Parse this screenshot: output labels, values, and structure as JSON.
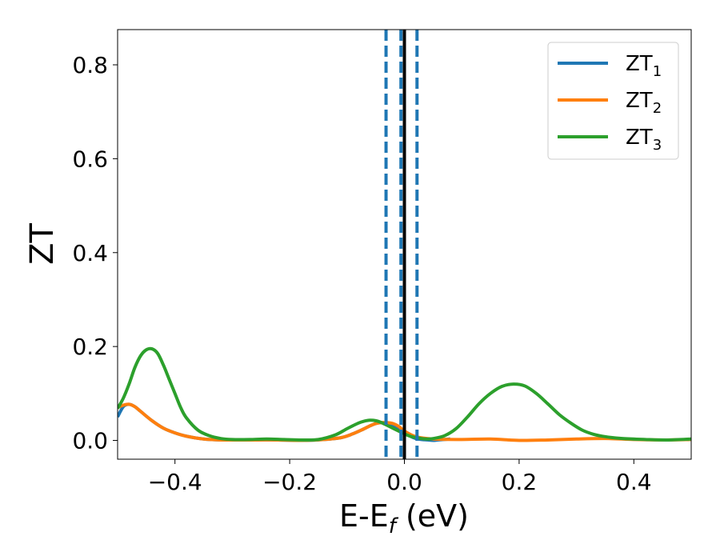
{
  "chart_data": {
    "type": "line",
    "title": "",
    "xlabel": "E-E",
    "xlabel_sub": "f",
    "xlabel_unit": " (eV)",
    "ylabel": "ZT",
    "xlim": [
      -0.5,
      0.5
    ],
    "ylim": [
      -0.04,
      0.875
    ],
    "xticks": [
      -0.4,
      -0.2,
      0.0,
      0.2,
      0.4
    ],
    "xtick_labels": [
      "−0.4",
      "−0.2",
      "0.0",
      "0.2",
      "0.4"
    ],
    "yticks": [
      0.0,
      0.2,
      0.4,
      0.6,
      0.8
    ],
    "ytick_labels": [
      "0.0",
      "0.2",
      "0.4",
      "0.6",
      "0.8"
    ],
    "grid": false,
    "legend_position": "top-right",
    "series": [
      {
        "name": "ZT",
        "name_sub": "1",
        "color": "#1f77b4",
        "x": [
          -0.5,
          -0.49,
          -0.48,
          -0.47,
          -0.46,
          -0.44,
          -0.42,
          -0.4,
          -0.38,
          -0.35,
          -0.32,
          -0.3,
          -0.26,
          -0.22,
          -0.18,
          -0.14,
          -0.11,
          -0.09,
          -0.075,
          -0.06,
          -0.05,
          -0.04,
          -0.03,
          -0.02,
          -0.01,
          0.0,
          0.01,
          0.02,
          0.03,
          0.04,
          0.05,
          0.06,
          0.08
        ],
        "y": [
          0.05,
          0.072,
          0.077,
          0.072,
          0.062,
          0.042,
          0.026,
          0.016,
          0.009,
          0.003,
          0.001,
          0.001,
          0.001,
          0.001,
          0.0,
          0.002,
          0.006,
          0.014,
          0.022,
          0.031,
          0.036,
          0.038,
          0.036,
          0.031,
          0.024,
          0.016,
          0.009,
          0.004,
          0.002,
          0.001,
          0.0,
          0.001,
          0.003
        ]
      },
      {
        "name": "ZT",
        "name_sub": "2",
        "color": "#ff7f0e",
        "x": [
          -0.5,
          -0.49,
          -0.48,
          -0.47,
          -0.46,
          -0.44,
          -0.42,
          -0.4,
          -0.38,
          -0.35,
          -0.32,
          -0.3,
          -0.26,
          -0.22,
          -0.18,
          -0.14,
          -0.11,
          -0.09,
          -0.075,
          -0.06,
          -0.05,
          -0.04,
          -0.03,
          -0.02,
          -0.01,
          0.0,
          0.02,
          0.05,
          0.1,
          0.15,
          0.2,
          0.25,
          0.3,
          0.35,
          0.4,
          0.45,
          0.5
        ],
        "y": [
          0.07,
          0.075,
          0.077,
          0.072,
          0.062,
          0.042,
          0.026,
          0.016,
          0.009,
          0.003,
          0.001,
          0.001,
          0.001,
          0.001,
          0.0,
          0.002,
          0.006,
          0.014,
          0.022,
          0.031,
          0.036,
          0.038,
          0.038,
          0.036,
          0.03,
          0.02,
          0.008,
          0.003,
          0.002,
          0.003,
          0.0,
          0.001,
          0.003,
          0.004,
          0.002,
          0.001,
          0.002
        ]
      },
      {
        "name": "ZT",
        "name_sub": "3",
        "color": "#2ca02c",
        "x": [
          -0.5,
          -0.49,
          -0.48,
          -0.47,
          -0.46,
          -0.45,
          -0.44,
          -0.43,
          -0.42,
          -0.41,
          -0.4,
          -0.39,
          -0.38,
          -0.36,
          -0.34,
          -0.32,
          -0.3,
          -0.27,
          -0.24,
          -0.21,
          -0.18,
          -0.15,
          -0.12,
          -0.1,
          -0.08,
          -0.07,
          -0.06,
          -0.05,
          -0.04,
          -0.03,
          -0.02,
          -0.01,
          0.0,
          0.01,
          0.02,
          0.03,
          0.04,
          0.05,
          0.07,
          0.09,
          0.11,
          0.13,
          0.15,
          0.17,
          0.19,
          0.21,
          0.23,
          0.25,
          0.27,
          0.29,
          0.31,
          0.33,
          0.35,
          0.38,
          0.42,
          0.46,
          0.5
        ],
        "y": [
          0.068,
          0.09,
          0.12,
          0.155,
          0.18,
          0.193,
          0.195,
          0.185,
          0.16,
          0.13,
          0.1,
          0.07,
          0.048,
          0.022,
          0.01,
          0.004,
          0.002,
          0.002,
          0.003,
          0.002,
          0.001,
          0.002,
          0.012,
          0.025,
          0.037,
          0.041,
          0.043,
          0.042,
          0.038,
          0.032,
          0.026,
          0.02,
          0.014,
          0.009,
          0.006,
          0.004,
          0.003,
          0.004,
          0.01,
          0.025,
          0.05,
          0.078,
          0.1,
          0.115,
          0.12,
          0.116,
          0.1,
          0.078,
          0.055,
          0.037,
          0.022,
          0.013,
          0.008,
          0.004,
          0.002,
          0.001,
          0.003
        ]
      }
    ],
    "vlines": [
      {
        "x": -0.032,
        "color": "#1f77b4",
        "style": "dashed"
      },
      {
        "x": -0.006,
        "color": "#1f77b4",
        "style": "dashed"
      },
      {
        "x": 0.022,
        "color": "#1f77b4",
        "style": "dashed"
      },
      {
        "x": 0.0,
        "color": "#000000",
        "style": "solid"
      }
    ]
  }
}
